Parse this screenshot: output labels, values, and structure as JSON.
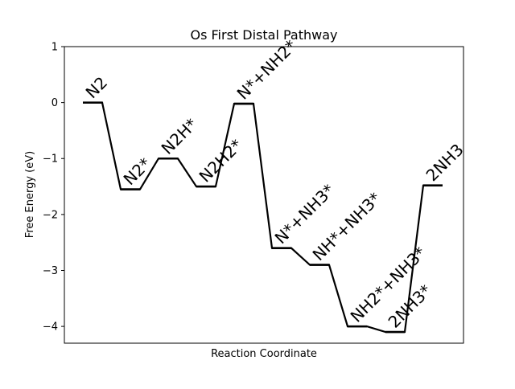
{
  "chart_data": {
    "type": "line",
    "title": "Os First Distal Pathway",
    "xlabel": "Reaction Coordinate",
    "ylabel": "Free Energy (eV)",
    "ylim": [
      -4.3,
      1
    ],
    "yticks": [
      "−4",
      "−3",
      "−2",
      "−1",
      "0",
      "1"
    ],
    "ytick_values": [
      -4,
      -3,
      -2,
      -1,
      0,
      1
    ],
    "grid": false,
    "line_color": "#000000",
    "series": [
      {
        "states": [
          {
            "label": "N2",
            "value": 0.0
          },
          {
            "label": "N2*",
            "value": -1.55
          },
          {
            "label": "N2H*",
            "value": -1.0
          },
          {
            "label": "N2H2*",
            "value": -1.5
          },
          {
            "label": "N*+NH2*",
            "value": -0.02
          },
          {
            "label": "N*+NH3*",
            "value": -2.6
          },
          {
            "label": "NH*+NH3*",
            "value": -2.9
          },
          {
            "label": "NH2*+NH3*",
            "value": -4.0
          },
          {
            "label": "2NH3*",
            "value": -4.1
          },
          {
            "label": "2NH3",
            "value": -1.48
          }
        ]
      }
    ]
  }
}
